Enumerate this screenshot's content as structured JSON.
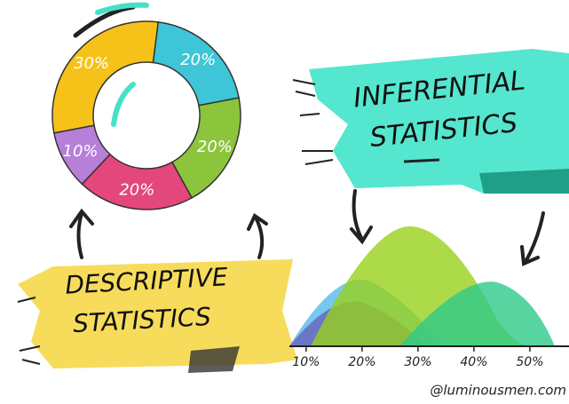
{
  "chart_data": [
    {
      "type": "pie",
      "values": [
        30,
        20,
        20,
        20,
        10
      ],
      "value_labels": [
        "30%",
        "20%",
        "20%",
        "20%",
        "10%"
      ],
      "colors": [
        "#f6c21a",
        "#3ec5d8",
        "#8cc43c",
        "#e4477b",
        "#b67fd8"
      ]
    },
    {
      "type": "density",
      "xlim": [
        7,
        57
      ],
      "xticks": [
        {
          "value": 10,
          "label": "10%"
        },
        {
          "value": 20,
          "label": "20%"
        },
        {
          "value": 30,
          "label": "30%"
        },
        {
          "value": 40,
          "label": "40%"
        },
        {
          "value": 50,
          "label": "50%"
        }
      ]
    }
  ],
  "banners": {
    "inferential": [
      "INFERENTIAL",
      "STATISTICS"
    ],
    "descriptive": [
      "DESCRIPTIVE",
      "STATISTICS"
    ]
  },
  "credit": "@luminousmen.com"
}
